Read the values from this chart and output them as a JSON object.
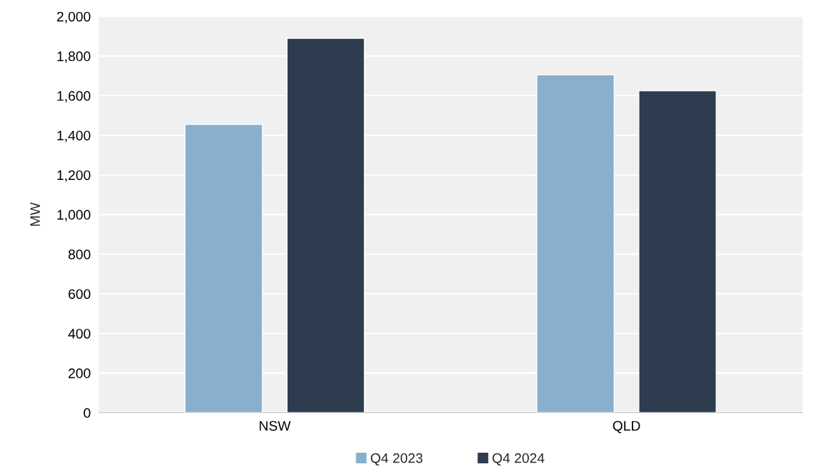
{
  "chart_data": {
    "type": "bar",
    "ylabel": "MW",
    "categories": [
      "NSW",
      "QLD"
    ],
    "series": [
      {
        "name": "Q4 2023",
        "color": "#8aafcc",
        "values": [
          1455,
          1705
        ]
      },
      {
        "name": "Q4 2024",
        "color": "#2e3c50",
        "values": [
          1890,
          1625
        ]
      }
    ],
    "ylim": [
      0,
      2000
    ],
    "yticks": [
      {
        "value": 0,
        "label": "0"
      },
      {
        "value": 200,
        "label": "200"
      },
      {
        "value": 400,
        "label": "400"
      },
      {
        "value": 600,
        "label": "600"
      },
      {
        "value": 800,
        "label": "800"
      },
      {
        "value": 1000,
        "label": "1,000"
      },
      {
        "value": 1200,
        "label": "1,200"
      },
      {
        "value": 1400,
        "label": "1,400"
      },
      {
        "value": 1600,
        "label": "1,600"
      },
      {
        "value": 1800,
        "label": "1,800"
      },
      {
        "value": 2000,
        "label": "2,000"
      }
    ],
    "grid": "y",
    "legend": "bottom"
  }
}
